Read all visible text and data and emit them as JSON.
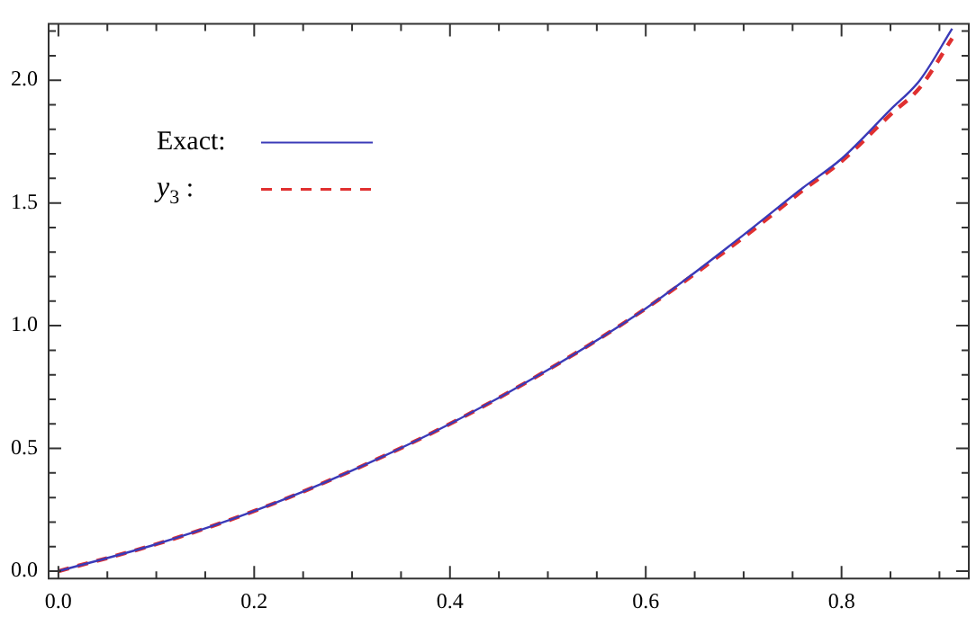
{
  "chart_data": {
    "type": "line",
    "xlim": [
      -0.01,
      0.93
    ],
    "ylim": [
      -0.03,
      2.23
    ],
    "xticks": [
      {
        "value": 0,
        "label": "0.0"
      },
      {
        "value": 0.05,
        "label": null
      },
      {
        "value": 0.1,
        "label": null
      },
      {
        "value": 0.15,
        "label": null
      },
      0.2,
      {
        "value": 0.25,
        "label": null
      },
      {
        "value": 0.3,
        "label": null
      },
      {
        "value": 0.35,
        "label": null
      },
      0.4,
      {
        "value": 0.45,
        "label": null
      },
      {
        "value": 0.5,
        "label": null
      },
      {
        "value": 0.55,
        "label": null
      },
      0.6,
      {
        "value": 0.65,
        "label": null
      },
      {
        "value": 0.7,
        "label": null
      },
      {
        "value": 0.75,
        "label": null
      },
      0.8,
      {
        "value": 0.85,
        "label": null
      },
      {
        "value": 0.9,
        "label": null
      }
    ],
    "yticks": [
      {
        "value": 0,
        "label": "0.0"
      },
      {
        "value": 0.1,
        "label": null
      },
      {
        "value": 0.2,
        "label": null
      },
      {
        "value": 0.3,
        "label": null
      },
      {
        "value": 0.4,
        "label": null
      },
      0.5,
      {
        "value": 0.6,
        "label": null
      },
      {
        "value": 0.7,
        "label": null
      },
      {
        "value": 0.8,
        "label": null
      },
      {
        "value": 0.9,
        "label": null
      },
      {
        "value": 1,
        "label": "1.0"
      },
      {
        "value": 1.1,
        "label": null
      },
      {
        "value": 1.2,
        "label": null
      },
      {
        "value": 1.3,
        "label": null
      },
      {
        "value": 1.4,
        "label": null
      },
      1.5,
      {
        "value": 1.6,
        "label": null
      },
      {
        "value": 1.7,
        "label": null
      },
      {
        "value": 1.8,
        "label": null
      },
      {
        "value": 1.9,
        "label": null
      },
      {
        "value": 2,
        "label": "2.0"
      },
      {
        "value": 2.1,
        "label": null
      },
      {
        "value": 2.2,
        "label": null
      }
    ],
    "x": [
      0,
      0.1,
      0.2,
      0.3,
      0.4,
      0.5,
      0.6,
      0.7,
      0.76,
      0.8,
      0.85,
      0.88,
      0.913
    ],
    "series": [
      {
        "name": "Exact:",
        "color": "#3a3ab8",
        "line_style": "solid",
        "values": [
          0,
          0.11,
          0.245,
          0.41,
          0.6,
          0.82,
          1.07,
          1.37,
          1.56,
          1.68,
          1.88,
          2.0,
          2.21
        ]
      },
      {
        "name": "y$_{3}$ :",
        "color": "#e03030",
        "line_style": "dashed",
        "values": [
          0,
          0.11,
          0.245,
          0.41,
          0.6,
          0.82,
          1.07,
          1.36,
          1.55,
          1.67,
          1.86,
          1.97,
          2.17
        ]
      }
    ],
    "legend": "top left",
    "grid": false,
    "marker": "none"
  }
}
